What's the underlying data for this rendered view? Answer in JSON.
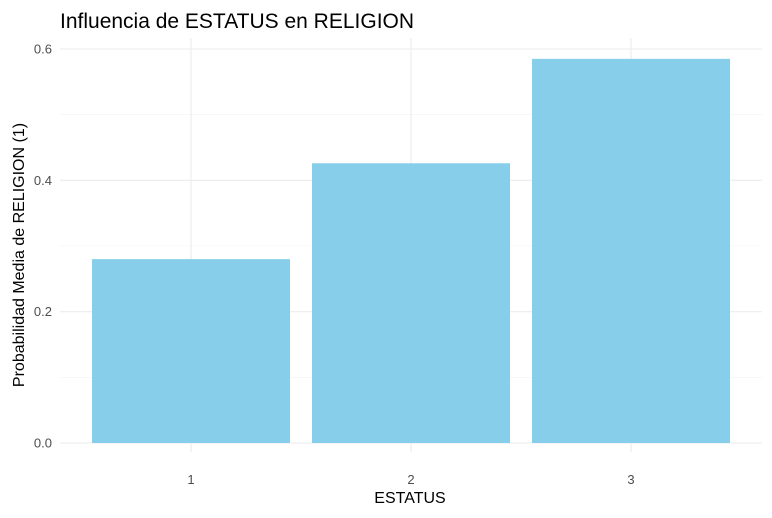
{
  "chart_data": {
    "type": "bar",
    "title": "Influencia de ESTATUS en RELIGION",
    "xlabel": "ESTATUS",
    "ylabel": "Probabilidad Media de RELIGION (1)",
    "categories": [
      "1",
      "2",
      "3"
    ],
    "values": [
      0.28,
      0.426,
      0.585
    ],
    "ylim": [
      0,
      0.6
    ],
    "yticks": [
      0.0,
      0.2,
      0.4,
      0.6
    ],
    "ytick_labels": [
      "0.0",
      "0.2",
      "0.4",
      "0.6"
    ],
    "bar_color": "#87CEEB",
    "grid": true,
    "legend": "none"
  }
}
